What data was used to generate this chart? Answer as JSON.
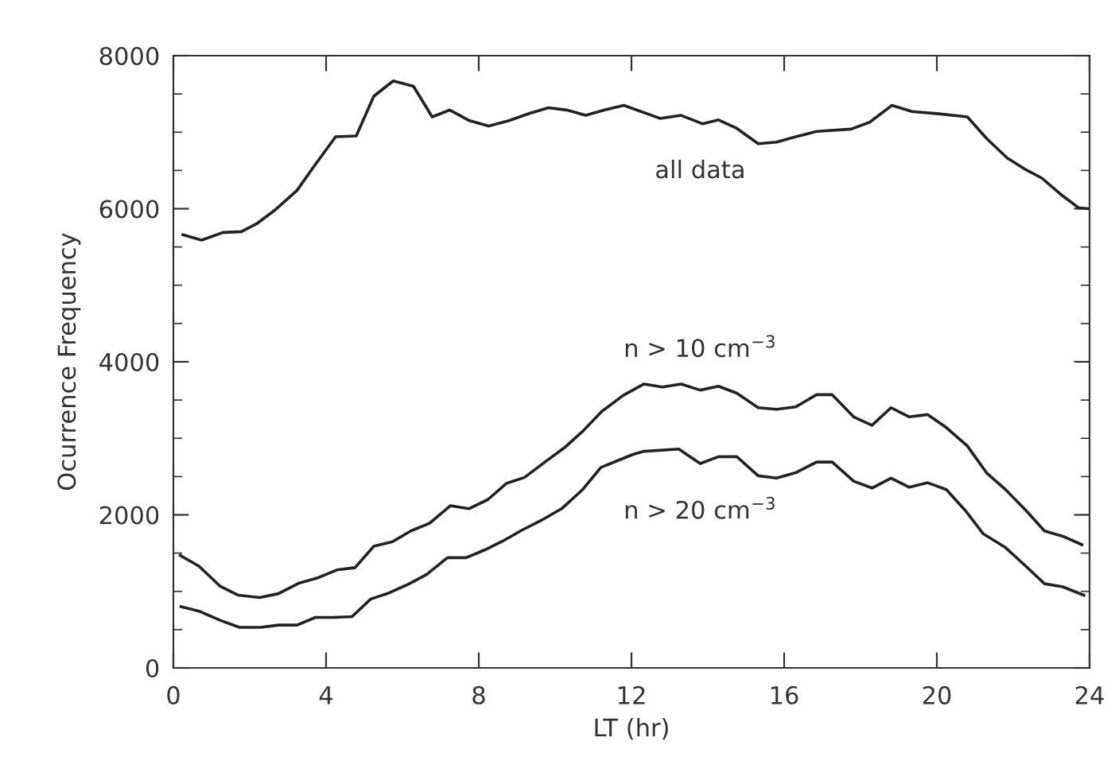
{
  "chart_data": {
    "type": "line",
    "xlabel": "LT (hr)",
    "ylabel": "Ocurrence Frequency",
    "xlim": [
      0,
      24
    ],
    "ylim": [
      0,
      8000
    ],
    "xticks": [
      0,
      4,
      8,
      12,
      16,
      20,
      24
    ],
    "yticks": [
      0,
      2000,
      4000,
      6000,
      8000
    ],
    "grid": false,
    "legend": false,
    "marker": "none",
    "line_style": "solid",
    "series": [
      {
        "name": "all data",
        "color": "#222222",
        "x": [
          0.25,
          0.74,
          1.3,
          1.78,
          2.2,
          2.68,
          3.24,
          3.72,
          4.25,
          4.79,
          5.25,
          5.76,
          6.29,
          6.78,
          7.24,
          7.76,
          8.26,
          8.79,
          9.35,
          9.83,
          10.3,
          10.8,
          11.3,
          11.8,
          12.75,
          13.3,
          13.86,
          14.28,
          14.76,
          15.32,
          15.8,
          16.3,
          16.85,
          17.75,
          18.24,
          18.82,
          19.35,
          20.05,
          20.8,
          21.3,
          21.85,
          22.33,
          22.75,
          23.24,
          23.72,
          24
        ],
        "values": [
          5660,
          5590,
          5690,
          5700,
          5810,
          5990,
          6240,
          6580,
          6940,
          6950,
          7470,
          7670,
          7600,
          7200,
          7290,
          7150,
          7080,
          7150,
          7250,
          7320,
          7290,
          7220,
          7290,
          7350,
          7180,
          7220,
          7110,
          7160,
          7050,
          6850,
          6870,
          6940,
          7010,
          7040,
          7130,
          7350,
          7270,
          7240,
          7200,
          6920,
          6660,
          6510,
          6400,
          6190,
          6010,
          6000
        ]
      },
      {
        "name": "n > 10 cm$^{−3}$",
        "color": "#222222",
        "x": [
          0.18,
          0.67,
          1.22,
          1.7,
          2.26,
          2.75,
          3.3,
          3.8,
          4.28,
          4.76,
          5.25,
          5.74,
          6.22,
          6.71,
          7.26,
          7.74,
          8.24,
          8.72,
          9.2,
          9.76,
          10.25,
          10.74,
          11.22,
          11.78,
          12.33,
          12.81,
          13.3,
          13.8,
          14.28,
          14.76,
          15.32,
          15.8,
          16.3,
          16.85,
          17.26,
          17.82,
          18.3,
          18.8,
          19.28,
          19.76,
          20.25,
          20.8,
          21.3,
          21.78,
          22.33,
          22.82,
          23.3,
          23.8
        ],
        "values": [
          1470,
          1330,
          1070,
          950,
          920,
          970,
          1110,
          1180,
          1280,
          1310,
          1590,
          1650,
          1790,
          1890,
          2120,
          2080,
          2200,
          2410,
          2490,
          2700,
          2880,
          3100,
          3350,
          3560,
          3710,
          3670,
          3710,
          3630,
          3680,
          3590,
          3400,
          3380,
          3410,
          3570,
          3570,
          3280,
          3170,
          3400,
          3280,
          3310,
          3140,
          2900,
          2550,
          2340,
          2060,
          1790,
          1720,
          1610
        ]
      },
      {
        "name": "n > 20 cm$^{−3}$",
        "color": "#222222",
        "x": [
          0.2,
          0.68,
          1.24,
          1.73,
          2.28,
          2.76,
          3.24,
          3.72,
          4.2,
          4.68,
          5.17,
          5.65,
          6.14,
          6.63,
          7.18,
          7.67,
          8.15,
          8.64,
          9.13,
          9.68,
          10.17,
          10.72,
          11.2,
          12.04,
          12.33,
          13.24,
          13.8,
          14.28,
          14.76,
          15.32,
          15.8,
          16.3,
          16.85,
          17.26,
          17.82,
          18.3,
          18.8,
          19.28,
          19.76,
          20.25,
          20.74,
          21.22,
          21.78,
          22.33,
          22.82,
          23.3,
          23.85
        ],
        "values": [
          800,
          740,
          620,
          530,
          530,
          560,
          560,
          660,
          660,
          670,
          900,
          980,
          1090,
          1220,
          1440,
          1440,
          1540,
          1660,
          1800,
          1940,
          2080,
          2330,
          2620,
          2790,
          2830,
          2860,
          2670,
          2760,
          2760,
          2510,
          2480,
          2550,
          2690,
          2690,
          2440,
          2350,
          2480,
          2360,
          2420,
          2330,
          2060,
          1750,
          1580,
          1330,
          1100,
          1060,
          950
        ]
      }
    ]
  }
}
